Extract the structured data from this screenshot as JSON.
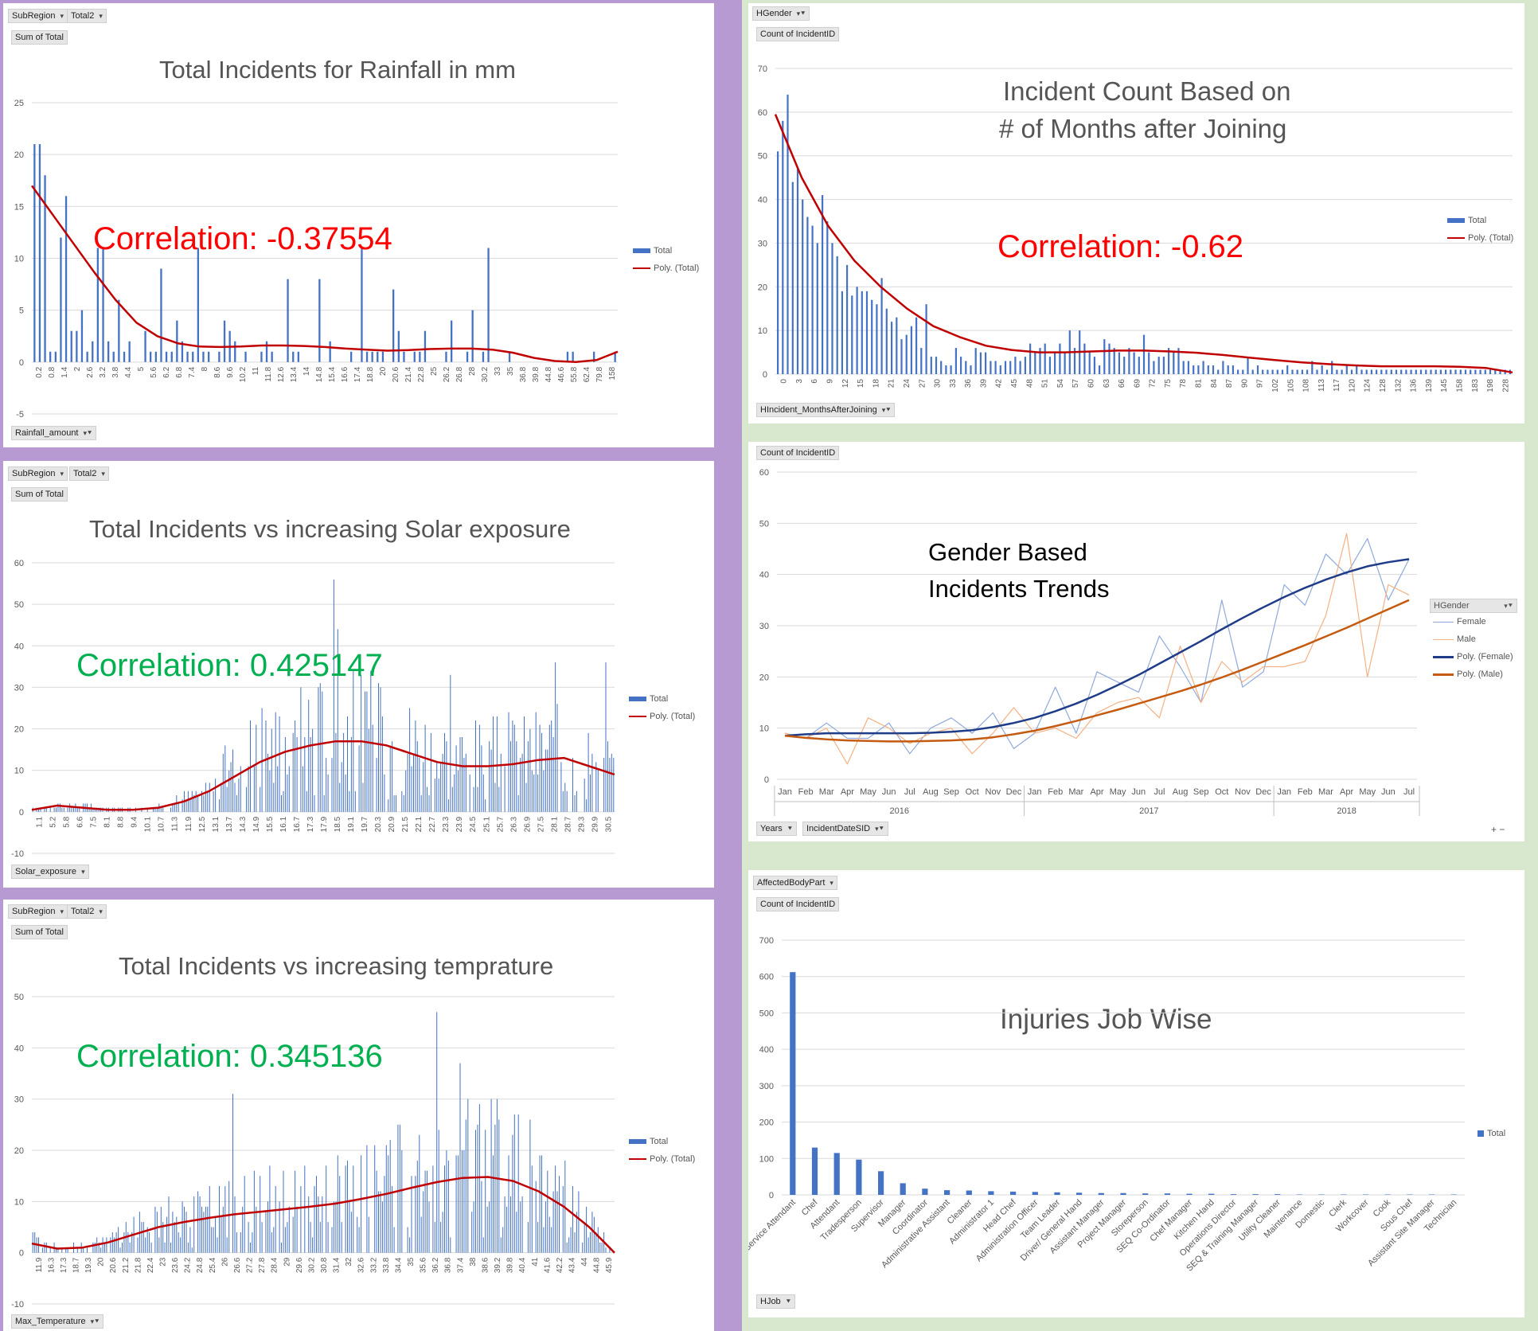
{
  "colors": {
    "bar": "#4472c4",
    "trend": "#c00000",
    "female": "#8fa9dc",
    "male": "#f4b183",
    "polyFemale": "#1f3c88",
    "polyMale": "#c55a11",
    "red": "#ff0000",
    "green": "#00b050"
  },
  "rain": {
    "buttons": {
      "subregion": "SubRegion",
      "total2": "Total2",
      "sum": "Sum of Total",
      "field": "Rainfall_amount"
    },
    "title": "Total Incidents for Rainfall in mm",
    "correlation": "Correlation: -0.37554",
    "legend": {
      "bars": "Total",
      "trend": "Poly. (Total)"
    },
    "chart_data": {
      "type": "bar",
      "ylim": [
        -5,
        25
      ],
      "yticks": [
        "-5",
        "0",
        "5",
        "10",
        "15",
        "20",
        "25"
      ],
      "xticks": [
        "0.2",
        "0.8",
        "1.4",
        "2",
        "2.6",
        "3.2",
        "3.8",
        "4.4",
        "5",
        "5.6",
        "6.2",
        "6.8",
        "7.4",
        "8",
        "8.6",
        "9.6",
        "10.2",
        "11",
        "11.8",
        "12.6",
        "13.4",
        "14",
        "14.8",
        "15.4",
        "16.6",
        "17.4",
        "18.8",
        "20",
        "20.6",
        "21.4",
        "22.8",
        "25",
        "26.2",
        "26.8",
        "28",
        "30.2",
        "33",
        "35",
        "36.8",
        "39.8",
        "44.8",
        "46.6",
        "55.8",
        "62.4",
        "79.8",
        "158"
      ],
      "values": [
        21,
        21,
        18,
        1,
        1,
        12,
        16,
        3,
        3,
        5,
        1,
        2,
        11,
        11,
        2,
        1,
        6,
        1,
        2,
        0,
        0,
        3,
        1,
        1,
        9,
        1,
        1,
        4,
        2,
        1,
        1,
        11,
        1,
        1,
        0,
        1,
        4,
        3,
        2,
        0,
        1,
        0,
        0,
        1,
        2,
        1,
        0,
        0,
        8,
        1,
        1,
        0,
        0,
        0,
        8,
        0,
        2,
        0,
        0,
        0,
        1,
        0,
        11,
        1,
        1,
        1,
        1,
        0,
        7,
        3,
        1,
        0,
        1,
        1,
        3,
        0,
        0,
        0,
        1,
        4,
        0,
        0,
        1,
        5,
        0,
        1,
        11,
        0,
        0,
        0,
        1,
        0,
        0,
        0,
        0,
        0,
        0,
        0,
        0,
        0,
        0,
        1,
        1,
        0,
        0,
        0,
        1,
        0,
        0,
        0,
        1
      ],
      "trend": [
        17,
        14.2,
        11.4,
        8.6,
        6,
        3.8,
        2.5,
        1.8,
        1.5,
        1.45,
        1.5,
        1.6,
        1.6,
        1.55,
        1.45,
        1.3,
        1.2,
        1.1,
        1.15,
        1.25,
        1.3,
        1.3,
        1.2,
        0.9,
        0.4,
        0.1,
        0,
        0.2,
        1
      ]
    }
  },
  "solar": {
    "buttons": {
      "subregion": "SubRegion",
      "total2": "Total2",
      "sum": "Sum of Total",
      "field": "Solar_exposure"
    },
    "title": "Total Incidents vs increasing Solar exposure",
    "correlation": "Correlation: 0.425147",
    "legend": {
      "bars": "Total",
      "trend": "Poly. (Total)"
    },
    "chart_data": {
      "type": "bar",
      "ylim": [
        -10,
        60
      ],
      "yticks": [
        "-10",
        "0",
        "10",
        "20",
        "30",
        "40",
        "50",
        "60"
      ],
      "xticks": [
        "1.1",
        "5.2",
        "5.8",
        "6.6",
        "7.5",
        "8.1",
        "8.8",
        "9.4",
        "10.1",
        "10.7",
        "11.3",
        "11.9",
        "12.5",
        "13.1",
        "13.7",
        "14.3",
        "14.9",
        "15.5",
        "16.1",
        "16.7",
        "17.3",
        "17.9",
        "18.5",
        "19.1",
        "19.7",
        "20.3",
        "20.9",
        "21.5",
        "22.1",
        "22.7",
        "23.3",
        "23.9",
        "24.5",
        "25.1",
        "25.7",
        "26.3",
        "26.9",
        "27.5",
        "28.1",
        "28.7",
        "29.3",
        "29.9",
        "30.5"
      ],
      "peaks": [
        [
          0.52,
          56
        ],
        [
          0.525,
          44
        ],
        [
          0.72,
          33
        ],
        [
          0.9,
          36
        ],
        [
          0.985,
          36
        ],
        [
          0.33,
          16
        ],
        [
          0.6,
          30
        ]
      ],
      "trend": [
        0.5,
        1.5,
        1,
        0.5,
        0.5,
        1,
        2.5,
        5,
        8.5,
        12,
        14.5,
        16,
        17,
        17,
        16,
        14,
        12,
        11,
        11,
        11.5,
        12.5,
        13,
        11,
        9
      ]
    }
  },
  "temp": {
    "buttons": {
      "subregion": "SubRegion",
      "total2": "Total2",
      "sum": "Sum of Total",
      "field": "Max_Temperature"
    },
    "title": "Total Incidents vs increasing temprature",
    "correlation": "Correlation: 0.345136",
    "legend": {
      "bars": "Total",
      "trend": "Poly. (Total)"
    },
    "chart_data": {
      "type": "bar",
      "ylim": [
        -10,
        50
      ],
      "yticks": [
        "-10",
        "0",
        "10",
        "20",
        "30",
        "40",
        "50"
      ],
      "xticks": [
        "11.9",
        "16.3",
        "17.3",
        "18.7",
        "19.3",
        "20",
        "20.6",
        "21.2",
        "21.8",
        "22.4",
        "23",
        "23.6",
        "24.2",
        "24.8",
        "25.4",
        "26",
        "26.6",
        "27.2",
        "27.8",
        "28.4",
        "29",
        "29.6",
        "30.2",
        "30.8",
        "31.4",
        "32",
        "32.6",
        "33.2",
        "33.8",
        "34.4",
        "35",
        "35.6",
        "36.2",
        "36.8",
        "37.4",
        "38",
        "38.6",
        "39.2",
        "39.8",
        "40.4",
        "41",
        "41.6",
        "42.2",
        "43.4",
        "44",
        "44.8",
        "45.9"
      ],
      "peaks": [
        [
          0.695,
          47
        ],
        [
          0.735,
          37
        ],
        [
          0.345,
          31
        ]
      ],
      "trend": [
        1.8,
        0.8,
        1,
        2,
        3.5,
        5,
        6,
        6.8,
        7.5,
        8,
        8.5,
        9,
        9.6,
        10.5,
        11.5,
        12.7,
        13.8,
        14.6,
        14.8,
        14,
        12,
        9,
        5,
        0
      ]
    }
  },
  "months": {
    "buttons": {
      "gender": "HGender",
      "count": "Count of IncidentID",
      "field": "HIncident_MonthsAfterJoining"
    },
    "title": [
      "Incident Count Based on",
      "# of Months after Joining"
    ],
    "correlation": "Correlation: -0.62",
    "legend": {
      "bars": "Total",
      "trend": "Poly. (Total)"
    },
    "chart_data": {
      "type": "bar",
      "ylim": [
        0,
        70
      ],
      "yticks": [
        "0",
        "10",
        "20",
        "30",
        "40",
        "50",
        "60",
        "70"
      ],
      "xticks": [
        "0",
        "3",
        "6",
        "9",
        "12",
        "15",
        "18",
        "21",
        "24",
        "27",
        "30",
        "33",
        "36",
        "39",
        "42",
        "45",
        "48",
        "51",
        "54",
        "57",
        "60",
        "63",
        "66",
        "69",
        "72",
        "75",
        "78",
        "81",
        "84",
        "87",
        "90",
        "97",
        "102",
        "105",
        "108",
        "113",
        "117",
        "120",
        "124",
        "128",
        "132",
        "136",
        "139",
        "145",
        "158",
        "183",
        "198",
        "228"
      ],
      "values": [
        51,
        58,
        64,
        44,
        47,
        40,
        36,
        34,
        30,
        41,
        35,
        30,
        27,
        19,
        25,
        18,
        20,
        19,
        19,
        17,
        16,
        22,
        15,
        12,
        13,
        8,
        9,
        11,
        13,
        6,
        16,
        4,
        4,
        3,
        2,
        2,
        6,
        4,
        3,
        2,
        6,
        5,
        5,
        3,
        3,
        2,
        3,
        3,
        4,
        3,
        4,
        7,
        5,
        6,
        7,
        4,
        5,
        7,
        5,
        10,
        6,
        10,
        7,
        5,
        4,
        2,
        8,
        7,
        6,
        5,
        4,
        6,
        5,
        4,
        9,
        5,
        3,
        4,
        4,
        6,
        5,
        6,
        3,
        3,
        2,
        2,
        3,
        2,
        2,
        1,
        3,
        2,
        2,
        1,
        1,
        4,
        1,
        2,
        1,
        1,
        1,
        1,
        1,
        2,
        1,
        1,
        1,
        1,
        3,
        1,
        2,
        1,
        3,
        1,
        1,
        2,
        1,
        2,
        1,
        1,
        1,
        1,
        1,
        1,
        1,
        1,
        1,
        1,
        1,
        1,
        1,
        1,
        1,
        1,
        1,
        1,
        1,
        1,
        1,
        1,
        1,
        1,
        1,
        1,
        1,
        1,
        1,
        1,
        1
      ],
      "trend": [
        59.5,
        45,
        34,
        26,
        20,
        15,
        11,
        8.5,
        6.5,
        5.5,
        5,
        5,
        5.2,
        5.4,
        5.4,
        5.2,
        4.9,
        4.4,
        3.8,
        3.2,
        2.7,
        2.3,
        2,
        1.8,
        1.8,
        1.8,
        1.7,
        1.4,
        0.4
      ]
    }
  },
  "gender": {
    "buttons": {
      "count": "Count of IncidentID",
      "years": "Years",
      "date": "IncidentDateSID",
      "pm": "+ −"
    },
    "title": [
      "Gender Based",
      "Incidents Trends"
    ],
    "legend": {
      "header": "HGender",
      "female": "Female",
      "male": "Male",
      "polyFemale": "Poly. (Female)",
      "polyMale": "Poly. (Male)"
    },
    "chart_data": {
      "type": "line",
      "ylim": [
        0,
        60
      ],
      "yticks": [
        "0",
        "10",
        "20",
        "30",
        "40",
        "50",
        "60"
      ],
      "months": [
        "Jan",
        "Feb",
        "Mar",
        "Apr",
        "May",
        "Jun",
        "Jul",
        "Aug",
        "Sep",
        "Oct",
        "Nov",
        "Dec",
        "Jan",
        "Feb",
        "Mar",
        "Apr",
        "May",
        "Jun",
        "Jul",
        "Aug",
        "Sep",
        "Oct",
        "Nov",
        "Dec",
        "Jan",
        "Feb",
        "Mar",
        "Apr",
        "May",
        "Jun",
        "Jul"
      ],
      "years": [
        "2016",
        "2017",
        "2018"
      ],
      "series": [
        {
          "name": "Female",
          "values": [
            9,
            8,
            11,
            8,
            8,
            11,
            5,
            10,
            12,
            9,
            13,
            6,
            9,
            18,
            9,
            21,
            19,
            17,
            28,
            22,
            15,
            35,
            18,
            21,
            38,
            34,
            44,
            40,
            47,
            35,
            43
          ]
        },
        {
          "name": "Male",
          "values": [
            9,
            8,
            10,
            3,
            12,
            10,
            7,
            9,
            10,
            5,
            9,
            14,
            9,
            10,
            8,
            13,
            15,
            16,
            12,
            26,
            15,
            23,
            19,
            22,
            22,
            23,
            32,
            48,
            20,
            38,
            36
          ]
        },
        {
          "name": "Poly. (Female)",
          "values": [
            8.5,
            8.8,
            9,
            9,
            9,
            9,
            9,
            9.1,
            9.3,
            9.6,
            10.2,
            11,
            12,
            13.3,
            14.8,
            16.5,
            18.4,
            20.4,
            22.6,
            24.8,
            27,
            29.3,
            31.5,
            33.6,
            35.6,
            37.4,
            39,
            40.4,
            41.6,
            42.4,
            43
          ]
        },
        {
          "name": "Poly. (Male)",
          "values": [
            8.5,
            8.1,
            7.8,
            7.6,
            7.5,
            7.4,
            7.4,
            7.5,
            7.6,
            7.8,
            8.2,
            8.8,
            9.5,
            10.4,
            11.4,
            12.5,
            13.6,
            14.8,
            16,
            17.2,
            18.5,
            19.9,
            21.4,
            23,
            24.6,
            26.2,
            27.9,
            29.6,
            31.4,
            33.2,
            35
          ]
        }
      ]
    }
  },
  "jobs": {
    "buttons": {
      "field": "AffectedBodyPart",
      "count": "Count of IncidentID",
      "job": "HJob"
    },
    "title": "Injuries Job Wise",
    "legend": {
      "bars": "Total"
    },
    "chart_data": {
      "type": "bar",
      "ylim": [
        0,
        700
      ],
      "yticks": [
        "0",
        "100",
        "200",
        "300",
        "400",
        "500",
        "600",
        "700"
      ],
      "categories": [
        "Service Attendant",
        "Chef",
        "Attendant",
        "Tradesperson",
        "Supervisor",
        "Manager",
        "Coordinator",
        "Administrative Assistant",
        "Cleaner",
        "Administrator 1",
        "Head Chef",
        "Administration Officer",
        "Team Leader",
        "Driver/ General Hand",
        "Assistant Manager",
        "Project Manager",
        "Storeperson",
        "SEQ Co-Ordinator",
        "Chef Manager",
        "Kitchen Hand",
        "Operations Director",
        "SEQ & Training Manager",
        "Utility Cleaner",
        "Maintenance",
        "Domestic",
        "Clerk",
        "Workcover",
        "Cook",
        "Sous Chef",
        "Assistant Site Manager",
        "Technician"
      ],
      "values": [
        612,
        130,
        115,
        97,
        65,
        32,
        17,
        13,
        12,
        10,
        9,
        8,
        7,
        6,
        5,
        5,
        4,
        4,
        3,
        3,
        2,
        2,
        2,
        1,
        1,
        1,
        1,
        1,
        1,
        1,
        1
      ]
    }
  }
}
